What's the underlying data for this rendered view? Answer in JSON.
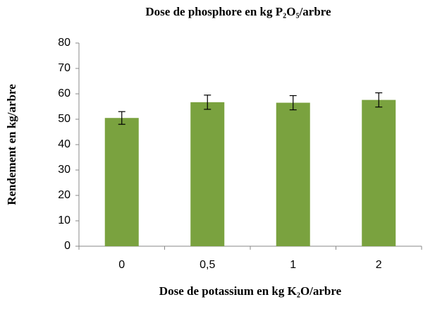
{
  "chart_data": {
    "type": "bar",
    "title": "Dose de phosphore en kg P₂O₅/arbre",
    "x_label": "Dose de potassium en kg K₂O/arbre",
    "y_label": "Rendement en kg/arbre",
    "categories": [
      "0",
      "0,5",
      "1",
      "2"
    ],
    "values": [
      50.5,
      56.7,
      56.5,
      57.6
    ],
    "errors": [
      2.5,
      2.8,
      2.8,
      2.8
    ],
    "color": "#7aa23f",
    "ylim": [
      0,
      80
    ],
    "yticks": [
      0,
      10,
      20,
      30,
      40,
      50,
      60,
      70,
      80
    ],
    "grid": false
  }
}
